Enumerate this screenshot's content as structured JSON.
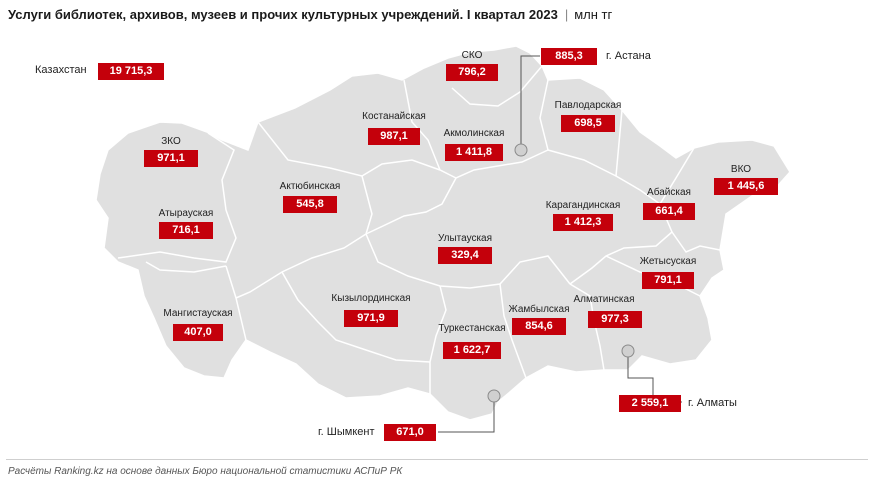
{
  "title": {
    "main": "Услуги библиотек, архивов, музеев и прочих культурных учреждений. I квартал 2023",
    "unit": "млн тг"
  },
  "total": {
    "label": "Казахстан",
    "value": "19 715,3"
  },
  "regions": {
    "zko": {
      "name": "ЗКО",
      "value": "971,1"
    },
    "atyrau": {
      "name": "Атырауская",
      "value": "716,1"
    },
    "mangystau": {
      "name": "Мангистауская",
      "value": "407,0"
    },
    "aktobe": {
      "name": "Актюбинская",
      "value": "545,8"
    },
    "kostanay": {
      "name": "Костанайская",
      "value": "987,1"
    },
    "sko": {
      "name": "СКО",
      "value": "796,2"
    },
    "akmola": {
      "name": "Акмолинская",
      "value": "1 411,8"
    },
    "pavlodar": {
      "name": "Павлодарская",
      "value": "698,5"
    },
    "karaganda": {
      "name": "Карагандинская",
      "value": "1 412,3"
    },
    "abay": {
      "name": "Абайская",
      "value": "661,4"
    },
    "vko": {
      "name": "ВКО",
      "value": "1 445,6"
    },
    "ulytau": {
      "name": "Улытауская",
      "value": "329,4"
    },
    "kyzylorda": {
      "name": "Кызылординская",
      "value": "971,9"
    },
    "turkestan": {
      "name": "Туркестанская",
      "value": "1 622,7"
    },
    "zhambyl": {
      "name": "Жамбылская",
      "value": "854,6"
    },
    "almaty_region": {
      "name": "Алматинская",
      "value": "977,3"
    },
    "zhetysu": {
      "name": "Жетысуская",
      "value": "791,1"
    }
  },
  "cities": {
    "astana": {
      "name": "г. Астана",
      "value": "885,3"
    },
    "almaty": {
      "name": "г. Алматы",
      "value": "2 559,1"
    },
    "shymkent": {
      "name": "г. Шымкент",
      "value": "671,0"
    }
  },
  "source": "Расчёты Ranking.kz на основе данных Бюро национальной статистики АСПиР РК",
  "colors": {
    "value_box": "#c4000b",
    "map_fill": "#e0e0e0",
    "border": "#ffffff",
    "leader": "#555555"
  }
}
